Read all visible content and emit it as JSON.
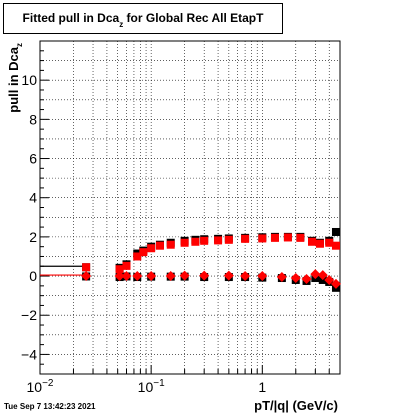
{
  "title": {
    "main": "Fitted pull in Dca",
    "subscript": "z",
    "suffix": " for Global Rec All EtapT"
  },
  "timestamp": "Tue Sep  7 13:42:23 2021",
  "colors": {
    "series_black": "#000000",
    "series_red": "#ff0000",
    "grid": "#000000",
    "background": "#ffffff"
  },
  "chart_data": {
    "type": "scatter",
    "title": "Fitted pull in Dca_z for Global Rec All EtapT",
    "xlabel": "pT/|q| (GeV/c)",
    "ylabel": "pull in Dca_z",
    "ylabel_main": "pull in Dca",
    "ylabel_sub": "z",
    "xscale": "log",
    "xlim": [
      0.01,
      5
    ],
    "ylim": [
      -5,
      12
    ],
    "grid": true,
    "x_ticks": [
      {
        "v": 0.01,
        "base": "10",
        "exp": "−2"
      },
      {
        "v": 0.1,
        "base": "10",
        "exp": "−1"
      },
      {
        "v": 1,
        "base": "1",
        "exp": ""
      }
    ],
    "y_ticks": [
      -4,
      -2,
      0,
      2,
      4,
      6,
      8,
      10
    ],
    "series": [
      {
        "color": "#000000",
        "marker": "square",
        "points": [
          [
            0.026,
            0.45
          ],
          [
            0.052,
            0.42
          ],
          [
            0.06,
            0.6
          ],
          [
            0.075,
            1.15
          ],
          [
            0.085,
            1.3
          ],
          [
            0.1,
            1.5
          ],
          [
            0.12,
            1.6
          ],
          [
            0.15,
            1.7
          ],
          [
            0.2,
            1.8
          ],
          [
            0.25,
            1.85
          ],
          [
            0.3,
            1.88
          ],
          [
            0.4,
            1.9
          ],
          [
            0.5,
            1.92
          ],
          [
            0.7,
            1.95
          ],
          [
            1.0,
            1.98
          ],
          [
            1.3,
            2.0
          ],
          [
            1.7,
            2.0
          ],
          [
            2.2,
            2.0
          ],
          [
            2.8,
            1.8
          ],
          [
            3.3,
            1.7
          ],
          [
            4.0,
            1.8
          ],
          [
            4.6,
            2.25
          ],
          [
            0.026,
            -0.02
          ],
          [
            0.052,
            -0.05
          ],
          [
            0.06,
            -0.02
          ],
          [
            0.075,
            -0.05
          ],
          [
            0.1,
            -0.03
          ],
          [
            0.15,
            -0.03
          ],
          [
            0.2,
            -0.03
          ],
          [
            0.3,
            -0.05
          ],
          [
            0.5,
            -0.05
          ],
          [
            0.7,
            -0.05
          ],
          [
            1.0,
            -0.08
          ],
          [
            1.5,
            -0.1
          ],
          [
            2.0,
            -0.2
          ],
          [
            2.5,
            -0.25
          ],
          [
            3.0,
            -0.1
          ],
          [
            3.5,
            -0.2
          ],
          [
            4.0,
            -0.3
          ],
          [
            4.6,
            -0.6
          ]
        ]
      },
      {
        "color": "#ff0000",
        "marker": "square",
        "points": [
          [
            0.026,
            0.45
          ],
          [
            0.052,
            0.35
          ],
          [
            0.06,
            0.52
          ],
          [
            0.075,
            1.0
          ],
          [
            0.085,
            1.22
          ],
          [
            0.1,
            1.42
          ],
          [
            0.12,
            1.55
          ],
          [
            0.15,
            1.6
          ],
          [
            0.2,
            1.7
          ],
          [
            0.25,
            1.75
          ],
          [
            0.3,
            1.8
          ],
          [
            0.4,
            1.82
          ],
          [
            0.5,
            1.85
          ],
          [
            0.7,
            1.9
          ],
          [
            1.0,
            1.92
          ],
          [
            1.3,
            1.95
          ],
          [
            1.7,
            1.97
          ],
          [
            2.2,
            1.95
          ],
          [
            2.8,
            1.75
          ],
          [
            3.3,
            1.65
          ],
          [
            4.0,
            1.7
          ],
          [
            4.6,
            1.55
          ]
        ]
      },
      {
        "color": "#ff0000",
        "marker": "diamond",
        "points": [
          [
            0.026,
            0.0
          ],
          [
            0.052,
            0.0
          ],
          [
            0.06,
            0.0
          ],
          [
            0.075,
            0.0
          ],
          [
            0.1,
            0.0
          ],
          [
            0.15,
            0.0
          ],
          [
            0.2,
            0.02
          ],
          [
            0.3,
            0.02
          ],
          [
            0.5,
            0.02
          ],
          [
            0.7,
            0.0
          ],
          [
            1.0,
            0.0
          ],
          [
            1.5,
            -0.05
          ],
          [
            2.0,
            -0.1
          ],
          [
            2.5,
            -0.15
          ],
          [
            3.0,
            0.1
          ],
          [
            3.5,
            0.05
          ],
          [
            4.0,
            -0.2
          ],
          [
            4.6,
            -0.4
          ]
        ]
      }
    ],
    "reference_lines": [
      {
        "y": 0.5,
        "xmin": 0.01,
        "xmax": 0.026,
        "color": "#000000"
      },
      {
        "y": 0.05,
        "xmin": 0.01,
        "xmax": 0.026,
        "color": "#ff0000"
      }
    ]
  }
}
